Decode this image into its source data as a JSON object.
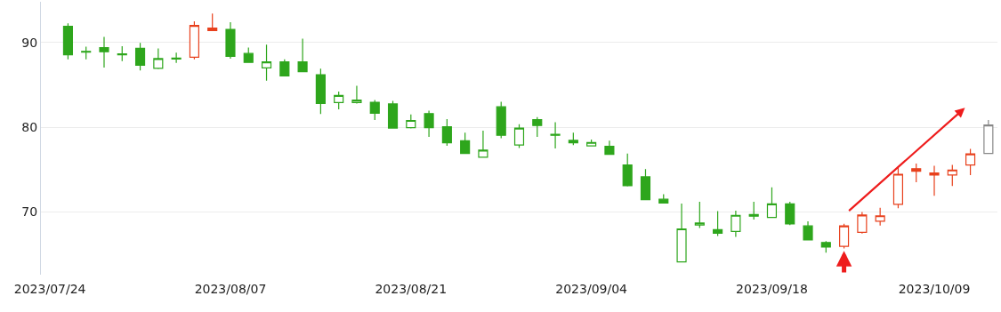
{
  "chart_data": {
    "type": "candlestick",
    "categories": [
      "2023/07/24",
      null,
      null,
      null,
      null,
      null,
      null,
      null,
      null,
      null,
      "2023/08/07",
      null,
      null,
      null,
      null,
      null,
      null,
      null,
      null,
      null,
      "2023/08/21",
      null,
      null,
      null,
      null,
      null,
      null,
      null,
      null,
      null,
      "2023/09/04",
      null,
      null,
      null,
      null,
      null,
      null,
      null,
      null,
      null,
      "2023/09/18",
      null,
      null,
      null,
      null,
      null,
      null,
      null,
      null,
      "2023/10/09",
      null,
      null,
      null
    ],
    "ohlc": [
      null,
      [
        91.9,
        92.25,
        88.0,
        88.55
      ],
      [
        88.95,
        89.5,
        88.0,
        88.85
      ],
      [
        89.4,
        90.65,
        87.05,
        88.9
      ],
      [
        88.65,
        89.55,
        87.8,
        88.55
      ],
      [
        89.3,
        89.95,
        86.7,
        87.3
      ],
      [
        86.95,
        89.3,
        86.85,
        88.1
      ],
      [
        88.15,
        88.8,
        87.6,
        88.05
      ],
      [
        88.25,
        92.5,
        88.0,
        92.0
      ],
      [
        91.7,
        93.4,
        91.4,
        91.4
      ],
      [
        91.55,
        92.4,
        88.1,
        88.35
      ],
      [
        88.7,
        89.4,
        87.65,
        87.65
      ],
      [
        87.0,
        89.75,
        85.5,
        87.7
      ],
      [
        87.7,
        88.0,
        86.05,
        86.05
      ],
      [
        87.7,
        90.45,
        86.55,
        86.55
      ],
      [
        86.2,
        86.9,
        81.55,
        82.8
      ],
      [
        82.9,
        84.2,
        82.1,
        83.75
      ],
      [
        82.9,
        84.9,
        82.8,
        83.2
      ],
      [
        82.95,
        83.2,
        80.85,
        81.65
      ],
      [
        82.75,
        83.1,
        79.9,
        79.9
      ],
      [
        79.95,
        81.5,
        79.85,
        80.8
      ],
      [
        81.6,
        81.95,
        78.85,
        79.95
      ],
      [
        80.05,
        80.95,
        77.8,
        78.15
      ],
      [
        78.4,
        79.35,
        76.9,
        76.9
      ],
      [
        76.45,
        79.6,
        76.45,
        77.3
      ],
      [
        82.4,
        83.0,
        78.7,
        79.05
      ],
      [
        77.9,
        80.35,
        77.55,
        79.9
      ],
      [
        80.9,
        81.2,
        78.85,
        80.2
      ],
      [
        79.15,
        80.6,
        77.5,
        79.05
      ],
      [
        78.45,
        79.35,
        77.9,
        78.15
      ],
      [
        77.8,
        78.55,
        77.8,
        78.2
      ],
      [
        77.75,
        78.4,
        76.8,
        76.8
      ],
      [
        75.55,
        76.9,
        73.0,
        73.1
      ],
      [
        74.15,
        75.05,
        71.45,
        71.45
      ],
      [
        71.5,
        72.1,
        71.05,
        71.05
      ],
      [
        64.1,
        71.0,
        64.1,
        68.0
      ],
      [
        68.45,
        71.2,
        68.1,
        68.7
      ],
      [
        67.9,
        70.1,
        67.15,
        67.5
      ],
      [
        67.7,
        70.15,
        67.05,
        69.6
      ],
      [
        69.7,
        71.2,
        69.1,
        69.5
      ],
      [
        69.35,
        72.9,
        69.35,
        70.95
      ],
      [
        70.95,
        71.2,
        68.45,
        68.6
      ],
      [
        68.35,
        68.9,
        66.65,
        66.7
      ],
      [
        66.4,
        66.55,
        65.2,
        65.85
      ],
      [
        65.95,
        68.6,
        65.7,
        68.35
      ],
      [
        67.6,
        70.0,
        67.45,
        69.65
      ],
      [
        68.9,
        70.5,
        68.4,
        69.55
      ],
      [
        70.9,
        75.4,
        70.45,
        74.45
      ],
      [
        75.1,
        75.7,
        73.5,
        74.8
      ],
      [
        74.35,
        75.45,
        71.9,
        74.6
      ],
      [
        74.35,
        75.55,
        73.05,
        74.95
      ],
      [
        75.55,
        77.45,
        74.35,
        76.85
      ],
      [
        76.9,
        80.85,
        76.9,
        80.25
      ]
    ],
    "colors": [
      null,
      "#2ea61c",
      "#2ea61c",
      "#2ea61c",
      "#2ea61c",
      "#2ea61c",
      "#2ea61c",
      "#2ea61c",
      "#e8401c",
      "#e8401c",
      "#2ea61c",
      "#2ea61c",
      "#2ea61c",
      "#2ea61c",
      "#2ea61c",
      "#2ea61c",
      "#2ea61c",
      "#2ea61c",
      "#2ea61c",
      "#2ea61c",
      "#2ea61c",
      "#2ea61c",
      "#2ea61c",
      "#2ea61c",
      "#2ea61c",
      "#2ea61c",
      "#2ea61c",
      "#2ea61c",
      "#2ea61c",
      "#2ea61c",
      "#2ea61c",
      "#2ea61c",
      "#2ea61c",
      "#2ea61c",
      "#2ea61c",
      "#2ea61c",
      "#2ea61c",
      "#2ea61c",
      "#2ea61c",
      "#2ea61c",
      "#2ea61c",
      "#2ea61c",
      "#2ea61c",
      "#2ea61c",
      "#e8401c",
      "#e8401c",
      "#e8401c",
      "#e8401c",
      "#e8401c",
      "#e8401c",
      "#e8401c",
      "#e8401c",
      "#888888"
    ],
    "ylim": [
      62.6,
      94.8
    ],
    "yticks": [
      70,
      80,
      90
    ],
    "grid": "y",
    "legend": false
  }
}
